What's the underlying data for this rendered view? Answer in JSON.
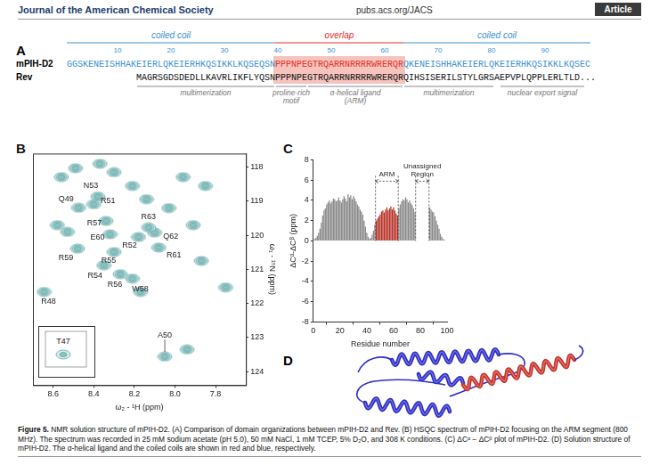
{
  "header": {
    "journal": "Journal of the American Chemical Society",
    "url": "pubs.acs.org/JACS",
    "section": "Article"
  },
  "panel_A": {
    "label": "A",
    "regions": [
      {
        "text": "coiled coil",
        "color": "#3d8fd1"
      },
      {
        "text": "overlap",
        "color": "#e0302a"
      },
      {
        "text": "coiled coil",
        "color": "#3d8fd1"
      }
    ],
    "ruler_ticks": [
      10,
      20,
      30,
      40,
      50,
      60,
      70,
      80,
      90
    ],
    "sequences": [
      {
        "name": "mPIH-D2",
        "segments": [
          {
            "text": "GGSKENEISHHAKEIERLQKEIERHKQSIKKLKQSEQSN",
            "color": "#3d8fd1"
          },
          {
            "text": "PPPNPEGTRQARRNRRRRWRERQR",
            "color": "#e0302a"
          },
          {
            "text": "QKENEISHHAKEIERLQKEIERHKQSIKKLKQSEC",
            "color": "#3d8fd1"
          }
        ]
      },
      {
        "name": "Rev",
        "segments": [
          {
            "text": "MAGRSGDSDEDLLKAVRLIKFLYQSN",
            "color": "#111111"
          },
          {
            "text": "PPPNPEGTRQARRNRRRRWRERQR",
            "color": "#111111"
          },
          {
            "text": "QIHSISERILSTYLGRSAEPVPLQPPLERLTLD...",
            "color": "#111111"
          }
        ]
      }
    ],
    "annotations": [
      [
        "multimerization"
      ],
      [
        "proline-rich",
        "motif"
      ],
      [
        "α-helical ligand",
        "(ARM)"
      ],
      [
        "multimerization"
      ],
      [
        "nuclear export signal"
      ]
    ]
  },
  "chart_data": [
    {
      "label": "B",
      "type": "scatter",
      "x_label": "ω₂ - ¹H (ppm)",
      "y_label": "ω₁ - ¹⁵N (ppm)",
      "xlim": [
        8.7,
        7.65
      ],
      "ylim": [
        124.4,
        117.6
      ],
      "xticks": [
        8.6,
        8.4,
        8.2,
        {
          "value": 8,
          "label": "8.0"
        },
        7.8
      ],
      "yticks": [
        118,
        119,
        120,
        121,
        122,
        123,
        124
      ],
      "grid": false,
      "color": "#5a9f9f",
      "peaks": [
        {
          "label": "Q49",
          "x": 8.475,
          "y": 119.19
        },
        {
          "label": "N53",
          "x": 8.38,
          "y": 118.86
        },
        {
          "label": "R51",
          "x": 8.4,
          "y": 119.09
        },
        {
          "label": "R57",
          "x": 8.34,
          "y": 119.58
        },
        {
          "label": "E60",
          "x": 8.32,
          "y": 119.97
        },
        {
          "label": "R52",
          "x": 8.18,
          "y": 120.05
        },
        {
          "label": "Q62",
          "x": 8.1,
          "y": 119.92
        },
        {
          "label": "R63",
          "x": 8.13,
          "y": 119.77
        },
        {
          "label": "R59",
          "x": 8.48,
          "y": 120.39
        },
        {
          "label": "R55",
          "x": 8.3,
          "y": 120.49
        },
        {
          "label": "R61",
          "x": 8.08,
          "y": 120.36
        },
        {
          "label": "R54",
          "x": 8.35,
          "y": 120.88
        },
        {
          "label": "R56",
          "x": 8.27,
          "y": 121.14
        },
        {
          "label": "W58",
          "x": 8.21,
          "y": 121.27
        },
        {
          "label": "R48",
          "x": 8.645,
          "y": 121.66
        },
        {
          "label": "A50",
          "x": 8.05,
          "y": 123.56
        }
      ],
      "unlabeled_peaks": {
        "x": [
          8.56,
          8.49,
          8.37,
          8.3,
          8.58,
          8.53,
          8.21,
          8.14,
          8.03,
          7.96,
          7.85,
          7.91,
          7.87,
          7.75,
          7.94,
          8.17
        ],
        "y": [
          118.29,
          118.03,
          117.9,
          118.15,
          119.7,
          119.9,
          118.55,
          118.94,
          119.2,
          118.29,
          118.55,
          119.7,
          120.75,
          121.53,
          123.35,
          121.66
        ]
      },
      "inset": {
        "label": "T47"
      }
    },
    {
      "label": "C",
      "type": "bar",
      "x_label": "Residue number",
      "y_label": "ΔCᵅ-ΔCᵝ (ppm)",
      "x": [
        1,
        2,
        3,
        4,
        5,
        6,
        7,
        8,
        9,
        10,
        11,
        12,
        13,
        14,
        15,
        16,
        17,
        18,
        19,
        20,
        21,
        22,
        23,
        24,
        25,
        26,
        27,
        28,
        29,
        30,
        31,
        32,
        33,
        34,
        35,
        36,
        37,
        38,
        39,
        40,
        41,
        42,
        43,
        44,
        45,
        46,
        47,
        48,
        49,
        50,
        51,
        52,
        53,
        54,
        55,
        56,
        57,
        58,
        59,
        60,
        61,
        62,
        63,
        64,
        65,
        66,
        67,
        68,
        69,
        70,
        71,
        72,
        73,
        74,
        75,
        76,
        77,
        78,
        79,
        80,
        81,
        82,
        83,
        84,
        85,
        86,
        87,
        88,
        89,
        90,
        91,
        92,
        93,
        94,
        95,
        96,
        97,
        98
      ],
      "values": [
        0.2,
        0.3,
        0.5,
        0.8,
        1.2,
        1.8,
        2.5,
        3.0,
        3.2,
        3.6,
        3.8,
        4.0,
        3.7,
        3.9,
        4.2,
        4.1,
        3.9,
        4.0,
        4.3,
        4.0,
        3.8,
        4.1,
        4.4,
        4.2,
        3.9,
        4.6,
        4.3,
        4.5,
        4.1,
        4.4,
        4.2,
        3.9,
        3.6,
        3.4,
        3.1,
        2.9,
        2.6,
        2.0,
        1.4,
        0.8,
        0.4,
        0.2,
        0.3,
        0.6,
        1.0,
        1.6,
        2.0,
        2.2,
        2.4,
        2.6,
        2.9,
        3.0,
        2.8,
        3.1,
        3.3,
        3.0,
        3.2,
        3.4,
        3.1,
        3.3,
        3.0,
        2.7,
        2.5,
        3.2,
        3.6,
        3.9,
        4.1,
        4.0,
        4.3,
        4.1,
        3.8,
        4.0,
        3.7,
        3.5,
        3.2,
        2.8,
        null,
        null,
        null,
        null,
        null,
        null,
        null,
        null,
        null,
        null,
        3.3,
        3.1,
        2.9,
        2.8,
        2.4,
        2.0,
        1.6,
        1.2,
        0.7,
        0.4,
        0.2,
        0.1
      ],
      "colors": [
        "#8a8a8a",
        "#8a8a8a",
        "#8a8a8a",
        "#8a8a8a",
        "#8a8a8a",
        "#8a8a8a",
        "#8a8a8a",
        "#8a8a8a",
        "#8a8a8a",
        "#8a8a8a",
        "#8a8a8a",
        "#8a8a8a",
        "#8a8a8a",
        "#8a8a8a",
        "#8a8a8a",
        "#8a8a8a",
        "#8a8a8a",
        "#8a8a8a",
        "#8a8a8a",
        "#8a8a8a",
        "#8a8a8a",
        "#8a8a8a",
        "#8a8a8a",
        "#8a8a8a",
        "#8a8a8a",
        "#8a8a8a",
        "#8a8a8a",
        "#8a8a8a",
        "#8a8a8a",
        "#8a8a8a",
        "#8a8a8a",
        "#8a8a8a",
        "#8a8a8a",
        "#8a8a8a",
        "#8a8a8a",
        "#8a8a8a",
        "#8a8a8a",
        "#8a8a8a",
        "#8a8a8a",
        "#8a8a8a",
        "#8a8a8a",
        "#8a8a8a",
        "#8a8a8a",
        "#8a8a8a",
        "#8a8a8a",
        "#8a8a8a",
        "#b8342a",
        "#b8342a",
        "#b8342a",
        "#b8342a",
        "#b8342a",
        "#b8342a",
        "#b8342a",
        "#b8342a",
        "#b8342a",
        "#b8342a",
        "#b8342a",
        "#b8342a",
        "#b8342a",
        "#b8342a",
        "#b8342a",
        "#b8342a",
        "#b8342a",
        "#8a8a8a",
        "#8a8a8a",
        "#8a8a8a",
        "#8a8a8a",
        "#8a8a8a",
        "#8a8a8a",
        "#8a8a8a",
        "#8a8a8a",
        "#8a8a8a",
        "#8a8a8a",
        "#8a8a8a",
        "#8a8a8a",
        "#8a8a8a",
        "#8a8a8a",
        "#8a8a8a",
        "#8a8a8a",
        "#8a8a8a",
        "#8a8a8a",
        "#8a8a8a",
        "#8a8a8a",
        "#8a8a8a",
        "#8a8a8a",
        "#8a8a8a",
        "#8a8a8a",
        "#8a8a8a",
        "#8a8a8a",
        "#8a8a8a",
        "#8a8a8a",
        "#8a8a8a",
        "#8a8a8a",
        "#8a8a8a",
        "#8a8a8a",
        "#8a8a8a",
        "#8a8a8a",
        "#8a8a8a"
      ],
      "xlim": [
        0,
        100
      ],
      "xticks": [
        0,
        20,
        40,
        60,
        80,
        100
      ],
      "ylim": [
        -8,
        8
      ],
      "yticks": [
        -8,
        -6,
        -4,
        -2,
        0,
        2,
        4,
        6,
        8
      ],
      "grid": false,
      "annotations": [
        {
          "text": [
            "ARM"
          ],
          "x": [
            46.5,
            63.5
          ]
        },
        {
          "text": [
            "Unassigned",
            "Region"
          ],
          "x": [
            76.5,
            86.5
          ]
        }
      ]
    }
  ],
  "panel_D": {
    "label": "D",
    "colors": [
      "#2f2fc8",
      "#c8322a"
    ]
  },
  "caption": {
    "label": "Figure 5.",
    "text": "NMR solution structure of mPIH-D2. (A) Comparison of domain organizations between mPIH-D2 and Rev. (B) HSQC spectrum of mPIH-D2 focusing on the ARM segment (800 MHz). The spectrum was recorded in 25 mM sodium acetate (pH 5.0), 50 mM NaCl, 1 mM TCEP, 5% D₂O, and 308 K conditions. (C) ΔCᵅ − ΔCᵝ plot of mPIH-D2. (D) Solution structure of mPIH-D2. The α-helical ligand and the coiled coils are shown in red and blue, respectively."
  }
}
